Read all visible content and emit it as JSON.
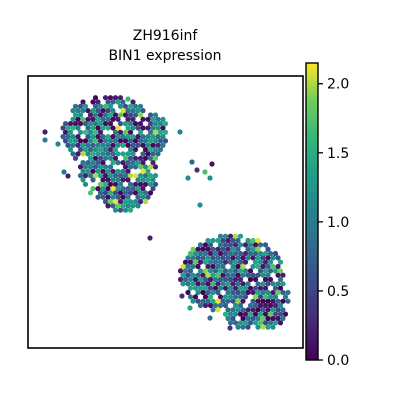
{
  "chart_data": {
    "type": "scatter",
    "title_line1": "ZH916inf",
    "title_line2": "BIN1 expression",
    "xlabel": "",
    "ylabel": "",
    "grid": false,
    "colormap": "viridis",
    "color_range": [
      0.0,
      2.15
    ],
    "colorbar_ticks": [
      "0.0",
      "0.5",
      "1.0",
      "1.5",
      "2.0"
    ],
    "colorbar_tick_values": [
      0.0,
      0.5,
      1.0,
      1.5,
      2.0
    ],
    "clusters": [
      {
        "name_hint": "upper-left",
        "x_range": [
          0.1,
          0.58
        ],
        "y_range": [
          0.07,
          0.62
        ]
      },
      {
        "name_hint": "lower-right",
        "x_range": [
          0.52,
          0.97
        ],
        "y_range": [
          0.55,
          0.95
        ]
      }
    ]
  }
}
